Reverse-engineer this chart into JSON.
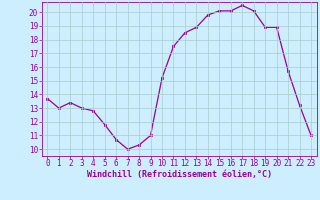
{
  "x": [
    0,
    1,
    2,
    3,
    4,
    5,
    6,
    7,
    8,
    9,
    10,
    11,
    12,
    13,
    14,
    15,
    16,
    17,
    18,
    19,
    20,
    21,
    22,
    23
  ],
  "y": [
    13.7,
    13.0,
    13.4,
    13.0,
    12.8,
    11.8,
    10.7,
    10.0,
    10.3,
    11.0,
    15.2,
    17.5,
    18.5,
    18.9,
    19.8,
    20.1,
    20.1,
    20.5,
    20.1,
    18.9,
    18.9,
    15.7,
    13.2,
    11.0
  ],
  "line_color": "#990099",
  "marker_color": "#990099",
  "bg_color": "#cceeff",
  "grid_color": "#aacccc",
  "xlabel": "Windchill (Refroidissement éolien,°C)",
  "xlim": [
    -0.5,
    23.5
  ],
  "ylim": [
    9.5,
    20.75
  ],
  "yticks": [
    10,
    11,
    12,
    13,
    14,
    15,
    16,
    17,
    18,
    19,
    20
  ],
  "xticks": [
    0,
    1,
    2,
    3,
    4,
    5,
    6,
    7,
    8,
    9,
    10,
    11,
    12,
    13,
    14,
    15,
    16,
    17,
    18,
    19,
    20,
    21,
    22,
    23
  ],
  "tick_color": "#990099",
  "label_color": "#990099",
  "spine_color": "#990099",
  "tick_fontsize": 5.5,
  "xlabel_fontsize": 6.0,
  "linewidth": 0.9,
  "markersize": 2.0
}
